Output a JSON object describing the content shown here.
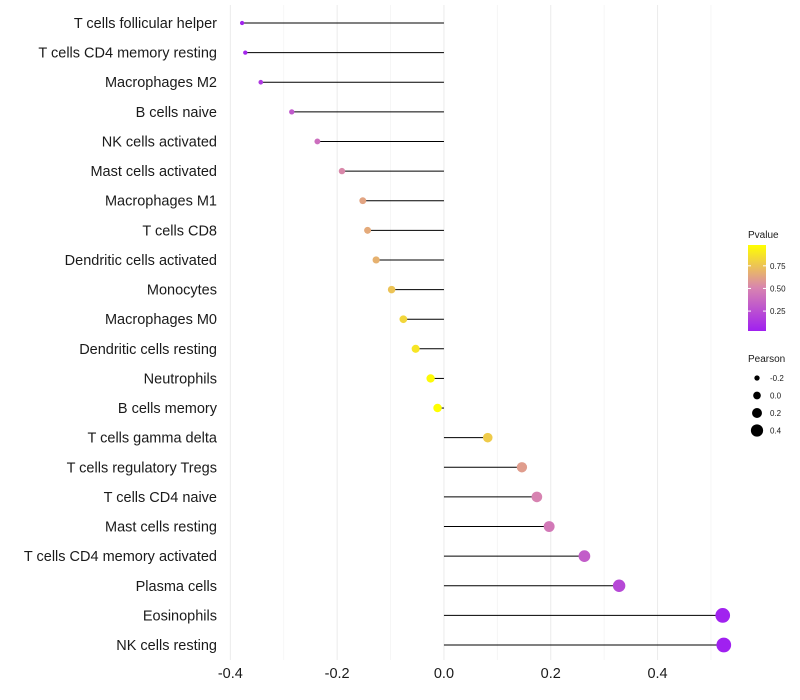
{
  "chart_data": {
    "type": "lollipop",
    "title": "",
    "xlabel": "",
    "ylabel": "",
    "xlim": [
      -0.41,
      0.545
    ],
    "xticks": [
      -0.4,
      -0.2,
      0.0,
      0.2,
      0.4
    ],
    "xtick_labels": [
      "-0.4",
      "-0.2",
      "0.0",
      "0.2",
      "0.4"
    ],
    "categories": [
      "T cells follicular helper",
      "T cells CD4 memory resting",
      "Macrophages M2",
      "B cells naive",
      "NK cells activated",
      "Mast cells activated",
      "Macrophages M1",
      "T cells CD8",
      "Dendritic cells activated",
      "Monocytes",
      "Macrophages M0",
      "Dendritic cells resting",
      "Neutrophils",
      "B cells memory",
      "T cells gamma delta",
      "T cells regulatory  Tregs ",
      "T cells CD4 naive",
      "Mast cells resting",
      "T cells CD4 memory activated",
      "Plasma cells",
      "Eosinophils",
      "NK cells resting"
    ],
    "pearson": [
      -0.378,
      -0.372,
      -0.343,
      -0.285,
      -0.237,
      -0.191,
      -0.152,
      -0.143,
      -0.127,
      -0.098,
      -0.076,
      -0.053,
      -0.025,
      -0.012,
      0.082,
      0.146,
      0.174,
      0.197,
      0.263,
      0.328,
      0.522,
      0.524
    ],
    "pvalue": [
      0.05,
      0.06,
      0.15,
      0.3,
      0.4,
      0.52,
      0.63,
      0.65,
      0.68,
      0.75,
      0.82,
      0.88,
      0.96,
      0.98,
      0.78,
      0.6,
      0.5,
      0.45,
      0.32,
      0.22,
      0.04,
      0.03
    ],
    "legend_pvalue": {
      "title": "Pvalue",
      "ticks": [
        0.25,
        0.5,
        0.75
      ],
      "tick_labels": [
        "0.25",
        "0.50",
        "0.75"
      ],
      "range": [
        0.03,
        0.98
      ],
      "low_color": "#a020f0",
      "high_color": "#ffff00"
    },
    "legend_pearson": {
      "title": "Pearson",
      "values": [
        -0.2,
        0.0,
        0.2,
        0.4
      ],
      "labels": [
        "-0.2",
        "0.0",
        "0.2",
        "0.4"
      ]
    },
    "grid": true,
    "legend_position": "right"
  }
}
